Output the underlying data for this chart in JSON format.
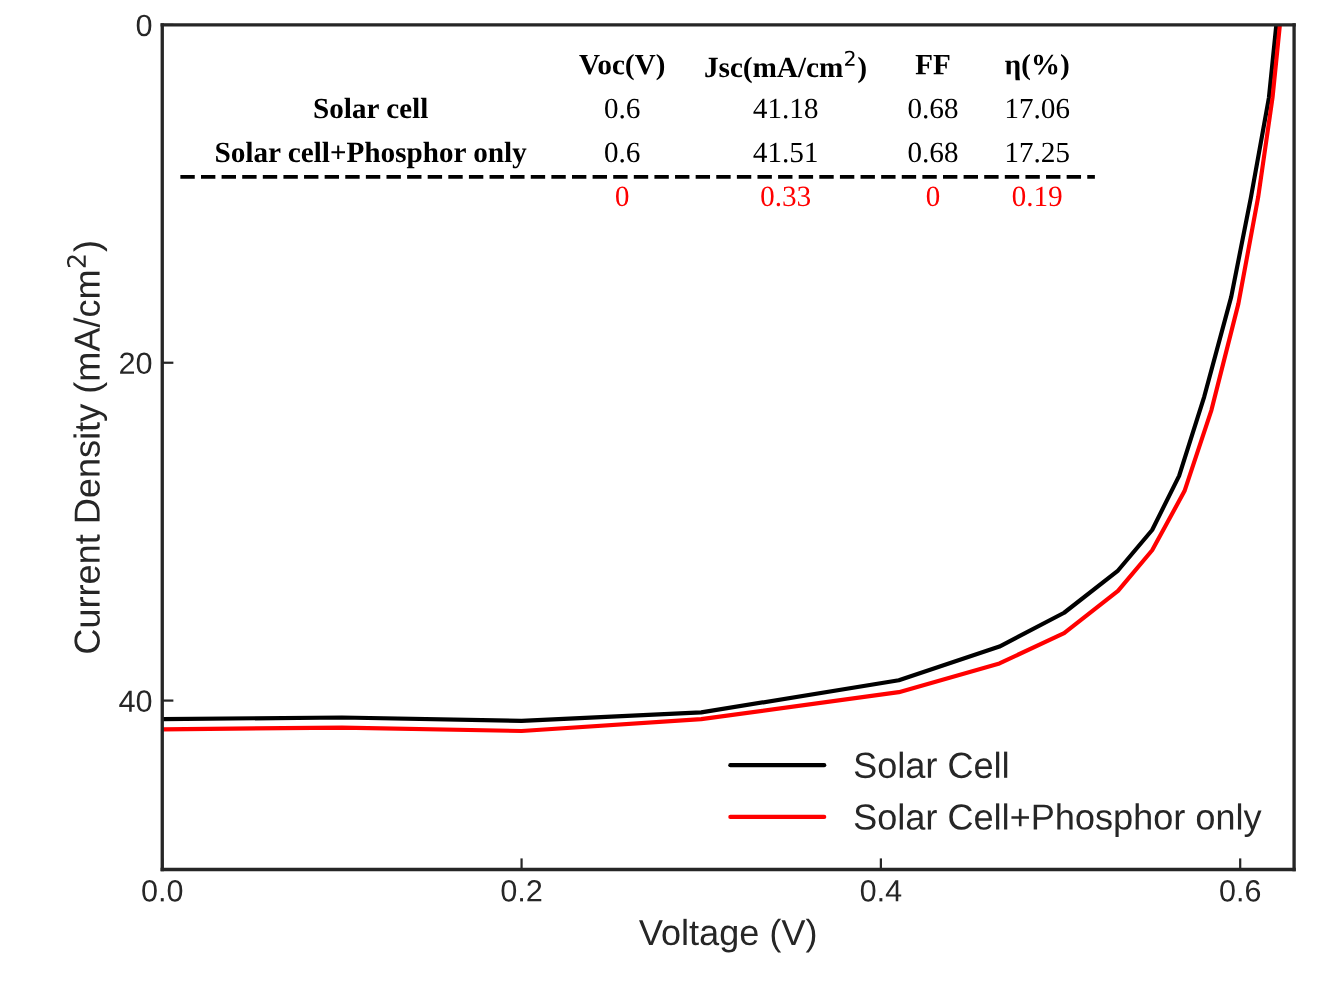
{
  "chart_data": {
    "type": "line",
    "xlabel": "Voltage (V)",
    "ylabel": "Current Density (mA/cm$^{2}$)",
    "xlim": [
      0,
      0.63
    ],
    "xticks": [
      {
        "value": 0,
        "label": "0.0"
      },
      0.2,
      0.4,
      0.6
    ],
    "ylim": [
      50,
      0
    ],
    "yticks": [
      0,
      20,
      40
    ],
    "grid": false,
    "legend": "bottom right",
    "marker": "none",
    "line_style": "solid",
    "series": [
      {
        "name": "Solar Cell",
        "color": "#000000",
        "x": [
          0,
          0.1,
          0.2,
          0.3,
          0.41,
          0.466,
          0.502,
          0.532,
          0.551,
          0.566,
          0.58,
          0.595,
          0.606,
          0.616,
          0.62
        ],
        "values": [
          41.1,
          41.0,
          41.2,
          40.7,
          38.8,
          36.8,
          34.8,
          32.3,
          29.9,
          26.7,
          22.0,
          16.1,
          10.2,
          4.3,
          0.1
        ]
      },
      {
        "name": "Solar Cell+Phosphor only",
        "color": "#ff0000",
        "x": [
          0,
          0.1,
          0.2,
          0.3,
          0.41,
          0.466,
          0.502,
          0.532,
          0.551,
          0.569,
          0.584,
          0.599,
          0.61,
          0.618,
          0.622
        ],
        "values": [
          41.7,
          41.6,
          41.8,
          41.1,
          39.5,
          37.8,
          36.0,
          33.5,
          31.1,
          27.6,
          22.8,
          16.5,
          10.2,
          4.3,
          0.1
        ]
      }
    ],
    "ref_lines": [
      {
        "axis": "y",
        "value": 9,
        "line_style": "dashed",
        "color": "#000000"
      }
    ],
    "annotations": [
      "Voc(V)",
      "Jsc(mA/cm$^{2}$)",
      "FF",
      "η(%)",
      "Solar cell",
      "0.6",
      "41.18",
      "0.68",
      "17.06",
      "Solar cell+Phosphor only",
      "0.6",
      "41.51",
      "0.68",
      "17.25",
      "0",
      "0.33",
      "0",
      "0.19"
    ]
  }
}
